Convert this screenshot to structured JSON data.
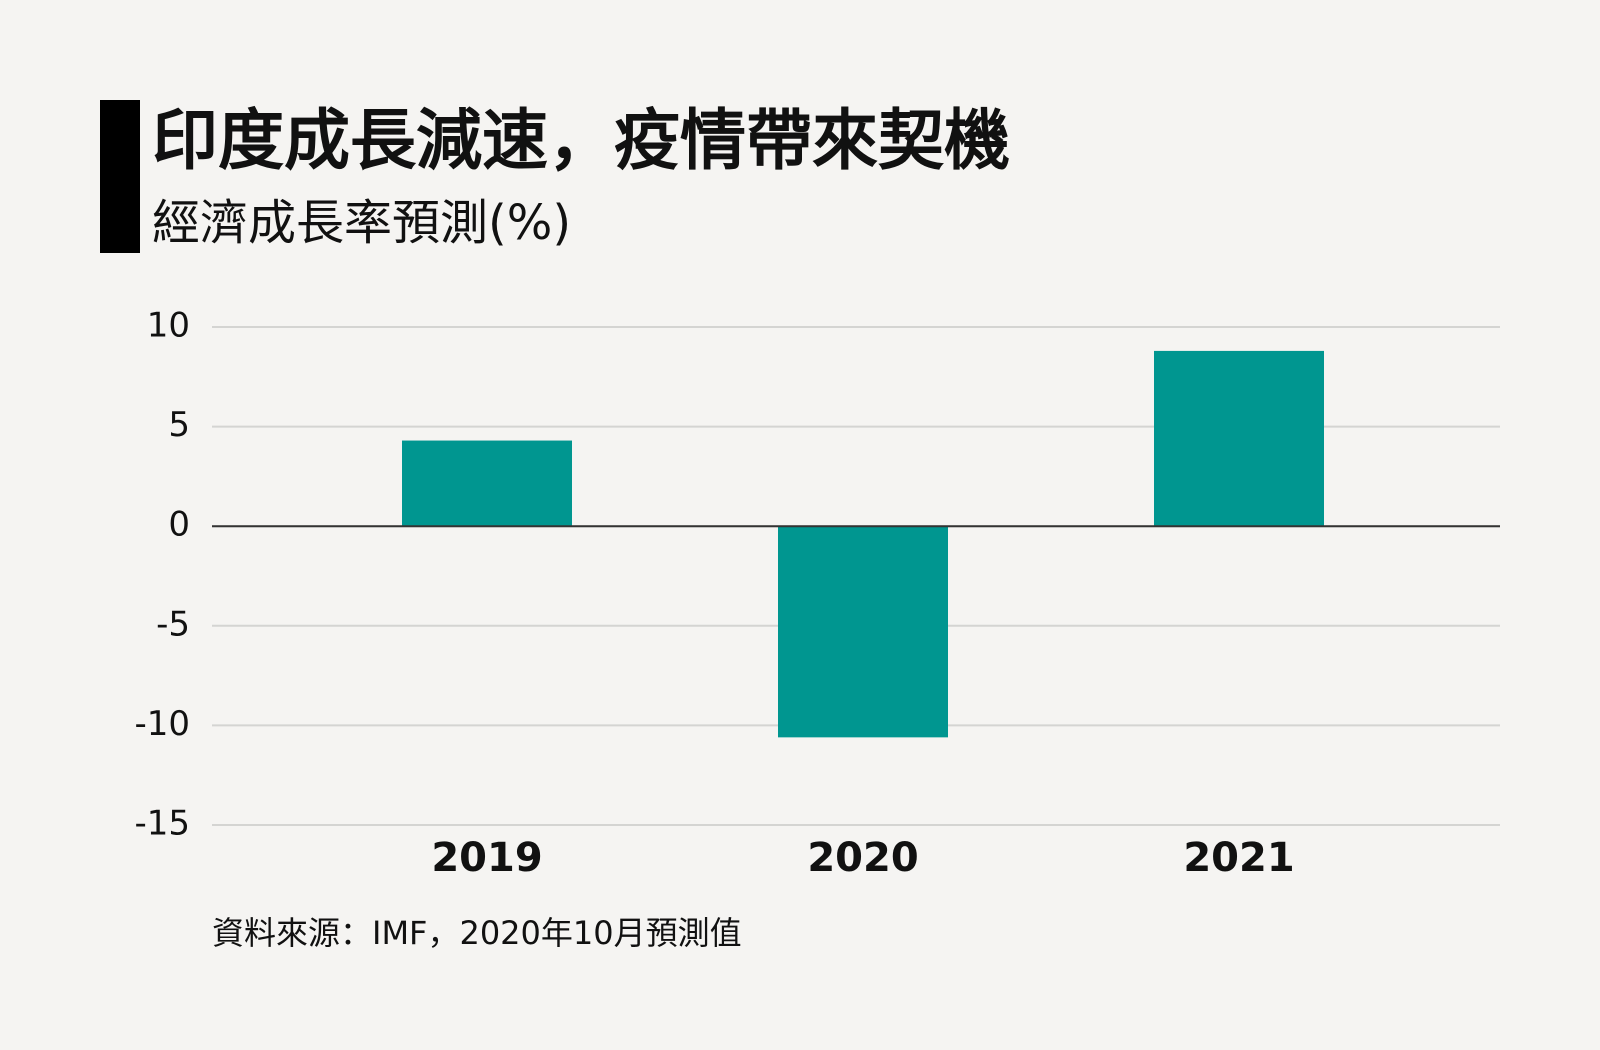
{
  "chart_data": {
    "type": "bar",
    "title": "印度成長減速，疫情帶來契機",
    "subtitle": "經濟成長率預測(%)",
    "source": "資料來源：IMF，2020年10月預測值",
    "categories": [
      "2019",
      "2020",
      "2021"
    ],
    "values": [
      4.3,
      -10.6,
      8.8
    ],
    "color": "#009690",
    "ylim": [
      -15,
      10
    ],
    "yticks": [
      -15,
      -10,
      -5,
      0,
      5,
      10
    ],
    "grid": true
  }
}
